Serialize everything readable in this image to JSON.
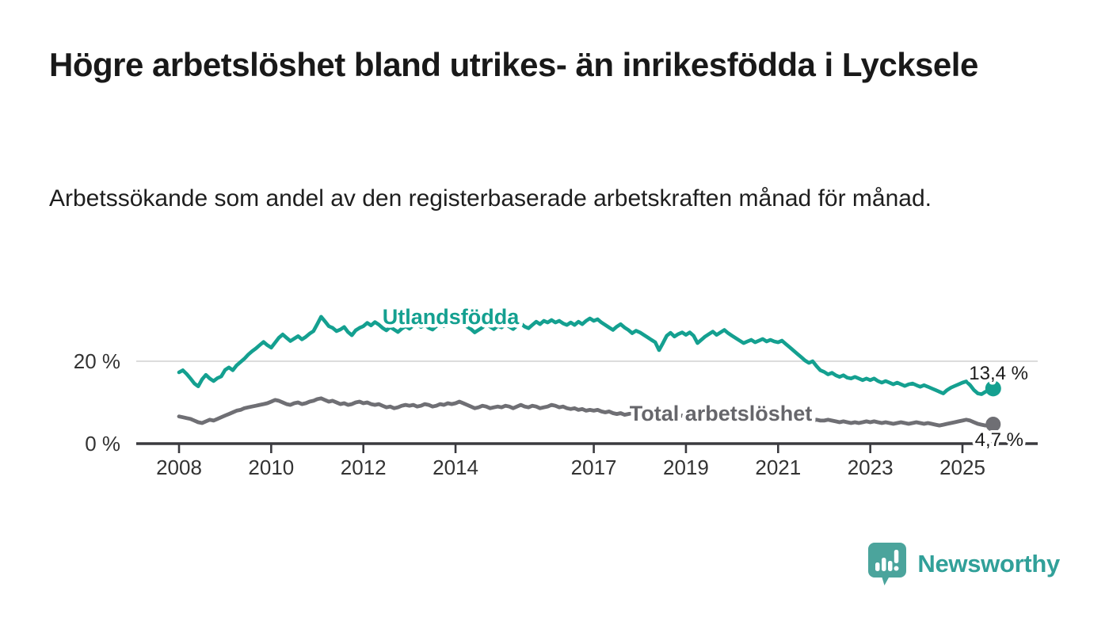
{
  "header": {
    "title": "Högre arbetslöshet bland utrikes- än inrikesfödda i Lycksele",
    "subtitle": "Arbetssökande som andel av den registerbaserade arbetskraften månad för månad."
  },
  "footer": {
    "brand": "Newsworthy"
  },
  "colors": {
    "accent_teal": "#14a090",
    "line_gray": "#6f6f74",
    "gray_label": "#66666b",
    "axis": "#3a3a3f",
    "gridline": "#dcdcdc",
    "logo_bubble": "#4ba49c",
    "brand_text": "#31a099"
  },
  "chart_data": {
    "type": "line",
    "title": "Högre arbetslöshet bland utrikes- än inrikesfödda i Lycksele",
    "subtitle": "Arbetssökande som andel av den registerbaserade arbetskraften månad för månad.",
    "unit": "%",
    "frequency": "monthly",
    "x_start": "2008-01",
    "x_end": "2025-09",
    "ylim": [
      0,
      34
    ],
    "grid": "single horizontal gridline at 20 %",
    "legend_position": "inline labels on lines",
    "y_axis": {
      "ticks": [
        {
          "value": 20,
          "label": "20 %"
        },
        {
          "value": 0,
          "label": "0 %"
        }
      ]
    },
    "x_axis": {
      "ticks": [
        {
          "value": 2008,
          "label": "2008"
        },
        {
          "value": 2010,
          "label": "2010"
        },
        {
          "value": 2012,
          "label": "2012"
        },
        {
          "value": 2014,
          "label": "2014"
        },
        {
          "value": 2017,
          "label": "2017"
        },
        {
          "value": 2019,
          "label": "2019"
        },
        {
          "value": 2021,
          "label": "2021"
        },
        {
          "value": 2023,
          "label": "2023"
        },
        {
          "value": 2025,
          "label": "2025"
        }
      ]
    },
    "series": [
      {
        "id": "total",
        "name": "Total arbetslöshet",
        "color": "#6f6f74",
        "label_color": "#66666b",
        "end_label": "4,7 %",
        "last_value": 4.7,
        "values": [
          6.6,
          6.4,
          6.2,
          6.0,
          5.6,
          5.2,
          5.0,
          5.4,
          5.8,
          5.6,
          6.0,
          6.4,
          6.8,
          7.2,
          7.6,
          8.0,
          8.2,
          8.6,
          8.8,
          9.0,
          9.2,
          9.4,
          9.6,
          9.8,
          10.2,
          10.6,
          10.4,
          10.0,
          9.6,
          9.4,
          9.8,
          10.0,
          9.6,
          9.8,
          10.2,
          10.4,
          10.8,
          11.0,
          10.6,
          10.2,
          10.4,
          10.0,
          9.6,
          9.8,
          9.4,
          9.6,
          10.0,
          10.2,
          9.8,
          10.0,
          9.6,
          9.4,
          9.6,
          9.2,
          8.8,
          9.0,
          8.6,
          8.8,
          9.2,
          9.4,
          9.2,
          9.4,
          9.0,
          9.2,
          9.6,
          9.4,
          9.0,
          9.2,
          9.6,
          9.4,
          9.8,
          9.6,
          9.8,
          10.2,
          9.8,
          9.4,
          9.0,
          8.6,
          8.8,
          9.2,
          9.0,
          8.6,
          8.8,
          9.0,
          8.8,
          9.2,
          9.0,
          8.6,
          9.0,
          9.4,
          9.0,
          8.8,
          9.2,
          9.0,
          8.6,
          8.8,
          9.0,
          9.4,
          9.2,
          8.8,
          9.0,
          8.6,
          8.4,
          8.6,
          8.2,
          8.4,
          8.0,
          8.2,
          8.0,
          8.2,
          7.8,
          7.6,
          7.8,
          7.4,
          7.2,
          7.4,
          7.0,
          7.2,
          7.4,
          7.6,
          7.4,
          7.2,
          7.0,
          6.8,
          7.0,
          6.8,
          6.6,
          6.8,
          6.6,
          6.4,
          6.6,
          6.8,
          6.6,
          6.8,
          6.6,
          6.4,
          6.6,
          6.4,
          6.2,
          6.4,
          6.2,
          6.0,
          6.2,
          6.4,
          6.6,
          6.8,
          7.0,
          7.2,
          7.0,
          6.8,
          6.6,
          6.4,
          6.2,
          6.0,
          6.2,
          6.4,
          6.2,
          6.0,
          5.8,
          6.0,
          5.8,
          5.6,
          5.8,
          5.6,
          5.4,
          5.6,
          5.8,
          5.6,
          5.6,
          5.8,
          5.6,
          5.4,
          5.2,
          5.4,
          5.2,
          5.0,
          5.2,
          5.0,
          5.2,
          5.4,
          5.2,
          5.4,
          5.2,
          5.0,
          5.2,
          5.0,
          4.8,
          5.0,
          5.2,
          5.0,
          4.8,
          5.0,
          5.2,
          5.0,
          4.8,
          5.0,
          4.8,
          4.6,
          4.4,
          4.6,
          4.8,
          5.0,
          5.2,
          5.4,
          5.6,
          5.8,
          5.6,
          5.2,
          4.8,
          4.6,
          4.4,
          4.5,
          4.7
        ]
      },
      {
        "id": "utlandsfodda",
        "name": "Utlandsfödda",
        "color": "#14a090",
        "label_color": "#14a090",
        "end_label": "13,4 %",
        "last_value": 13.4,
        "values": [
          17.3,
          17.8,
          16.9,
          15.8,
          14.6,
          13.9,
          15.6,
          16.7,
          15.8,
          15.2,
          15.9,
          16.3,
          17.9,
          18.5,
          17.8,
          19.0,
          19.8,
          20.6,
          21.6,
          22.4,
          23.1,
          23.9,
          24.7,
          23.9,
          23.3,
          24.5,
          25.7,
          26.5,
          25.7,
          24.9,
          25.5,
          26.1,
          25.3,
          25.9,
          26.7,
          27.3,
          29.0,
          30.8,
          29.7,
          28.5,
          28.1,
          27.3,
          27.7,
          28.3,
          27.1,
          26.3,
          27.5,
          28.1,
          28.5,
          29.3,
          28.7,
          29.5,
          28.9,
          28.1,
          27.5,
          28.3,
          27.7,
          27.1,
          27.9,
          28.5,
          27.9,
          28.7,
          29.1,
          28.3,
          28.9,
          28.1,
          27.7,
          28.5,
          29.1,
          28.5,
          29.3,
          30.2,
          31.8,
          30.6,
          29.2,
          28.4,
          27.8,
          27.0,
          27.6,
          28.2,
          29.0,
          28.4,
          27.8,
          28.6,
          28.2,
          29.0,
          28.4,
          27.8,
          28.6,
          29.2,
          28.4,
          28.0,
          28.8,
          29.6,
          29.0,
          29.8,
          29.4,
          30.0,
          29.4,
          29.8,
          29.2,
          28.8,
          29.4,
          28.8,
          29.6,
          29.0,
          29.8,
          30.4,
          29.8,
          30.2,
          29.4,
          28.8,
          28.2,
          27.6,
          28.4,
          29.0,
          28.2,
          27.6,
          26.8,
          27.4,
          27.0,
          26.4,
          25.8,
          25.2,
          24.6,
          22.7,
          24.4,
          26.2,
          26.9,
          26.0,
          26.6,
          27.0,
          26.4,
          27.0,
          26.2,
          24.4,
          25.2,
          26.0,
          26.6,
          27.2,
          26.4,
          27.0,
          27.6,
          26.8,
          26.2,
          25.6,
          25.0,
          24.4,
          24.8,
          25.2,
          24.6,
          25.0,
          25.4,
          24.8,
          25.2,
          24.8,
          24.6,
          25.0,
          24.2,
          23.4,
          22.6,
          21.8,
          21.0,
          20.2,
          19.6,
          20.0,
          18.8,
          17.8,
          17.4,
          16.8,
          17.2,
          16.6,
          16.2,
          16.6,
          16.0,
          15.8,
          16.2,
          15.8,
          15.4,
          15.8,
          15.4,
          15.8,
          15.2,
          14.8,
          15.2,
          14.8,
          14.4,
          14.8,
          14.4,
          14.0,
          14.4,
          14.6,
          14.2,
          13.8,
          14.2,
          13.8,
          13.4,
          13.0,
          12.6,
          12.2,
          13.0,
          13.6,
          14.0,
          14.4,
          14.8,
          15.1,
          14.2,
          13.0,
          12.2,
          12.0,
          12.6,
          13.0,
          13.4
        ]
      }
    ]
  }
}
